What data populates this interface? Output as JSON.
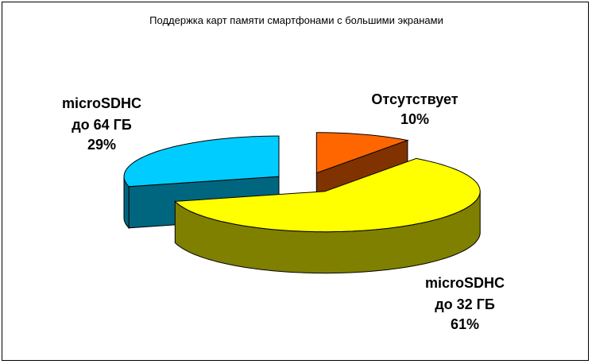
{
  "chart_data": {
    "type": "pie3d",
    "title": "Поддержка карт памяти смартфонами с большими экранами",
    "categories": [
      "Отсутствует",
      "microSDHC до 32 ГБ",
      "microSDHC до 64 ГБ"
    ],
    "values": [
      10,
      61,
      29
    ],
    "value_labels": [
      "10%",
      "61%",
      "29%"
    ],
    "colors": [
      "#FF6600",
      "#FFFF00",
      "#00CCFF"
    ]
  }
}
